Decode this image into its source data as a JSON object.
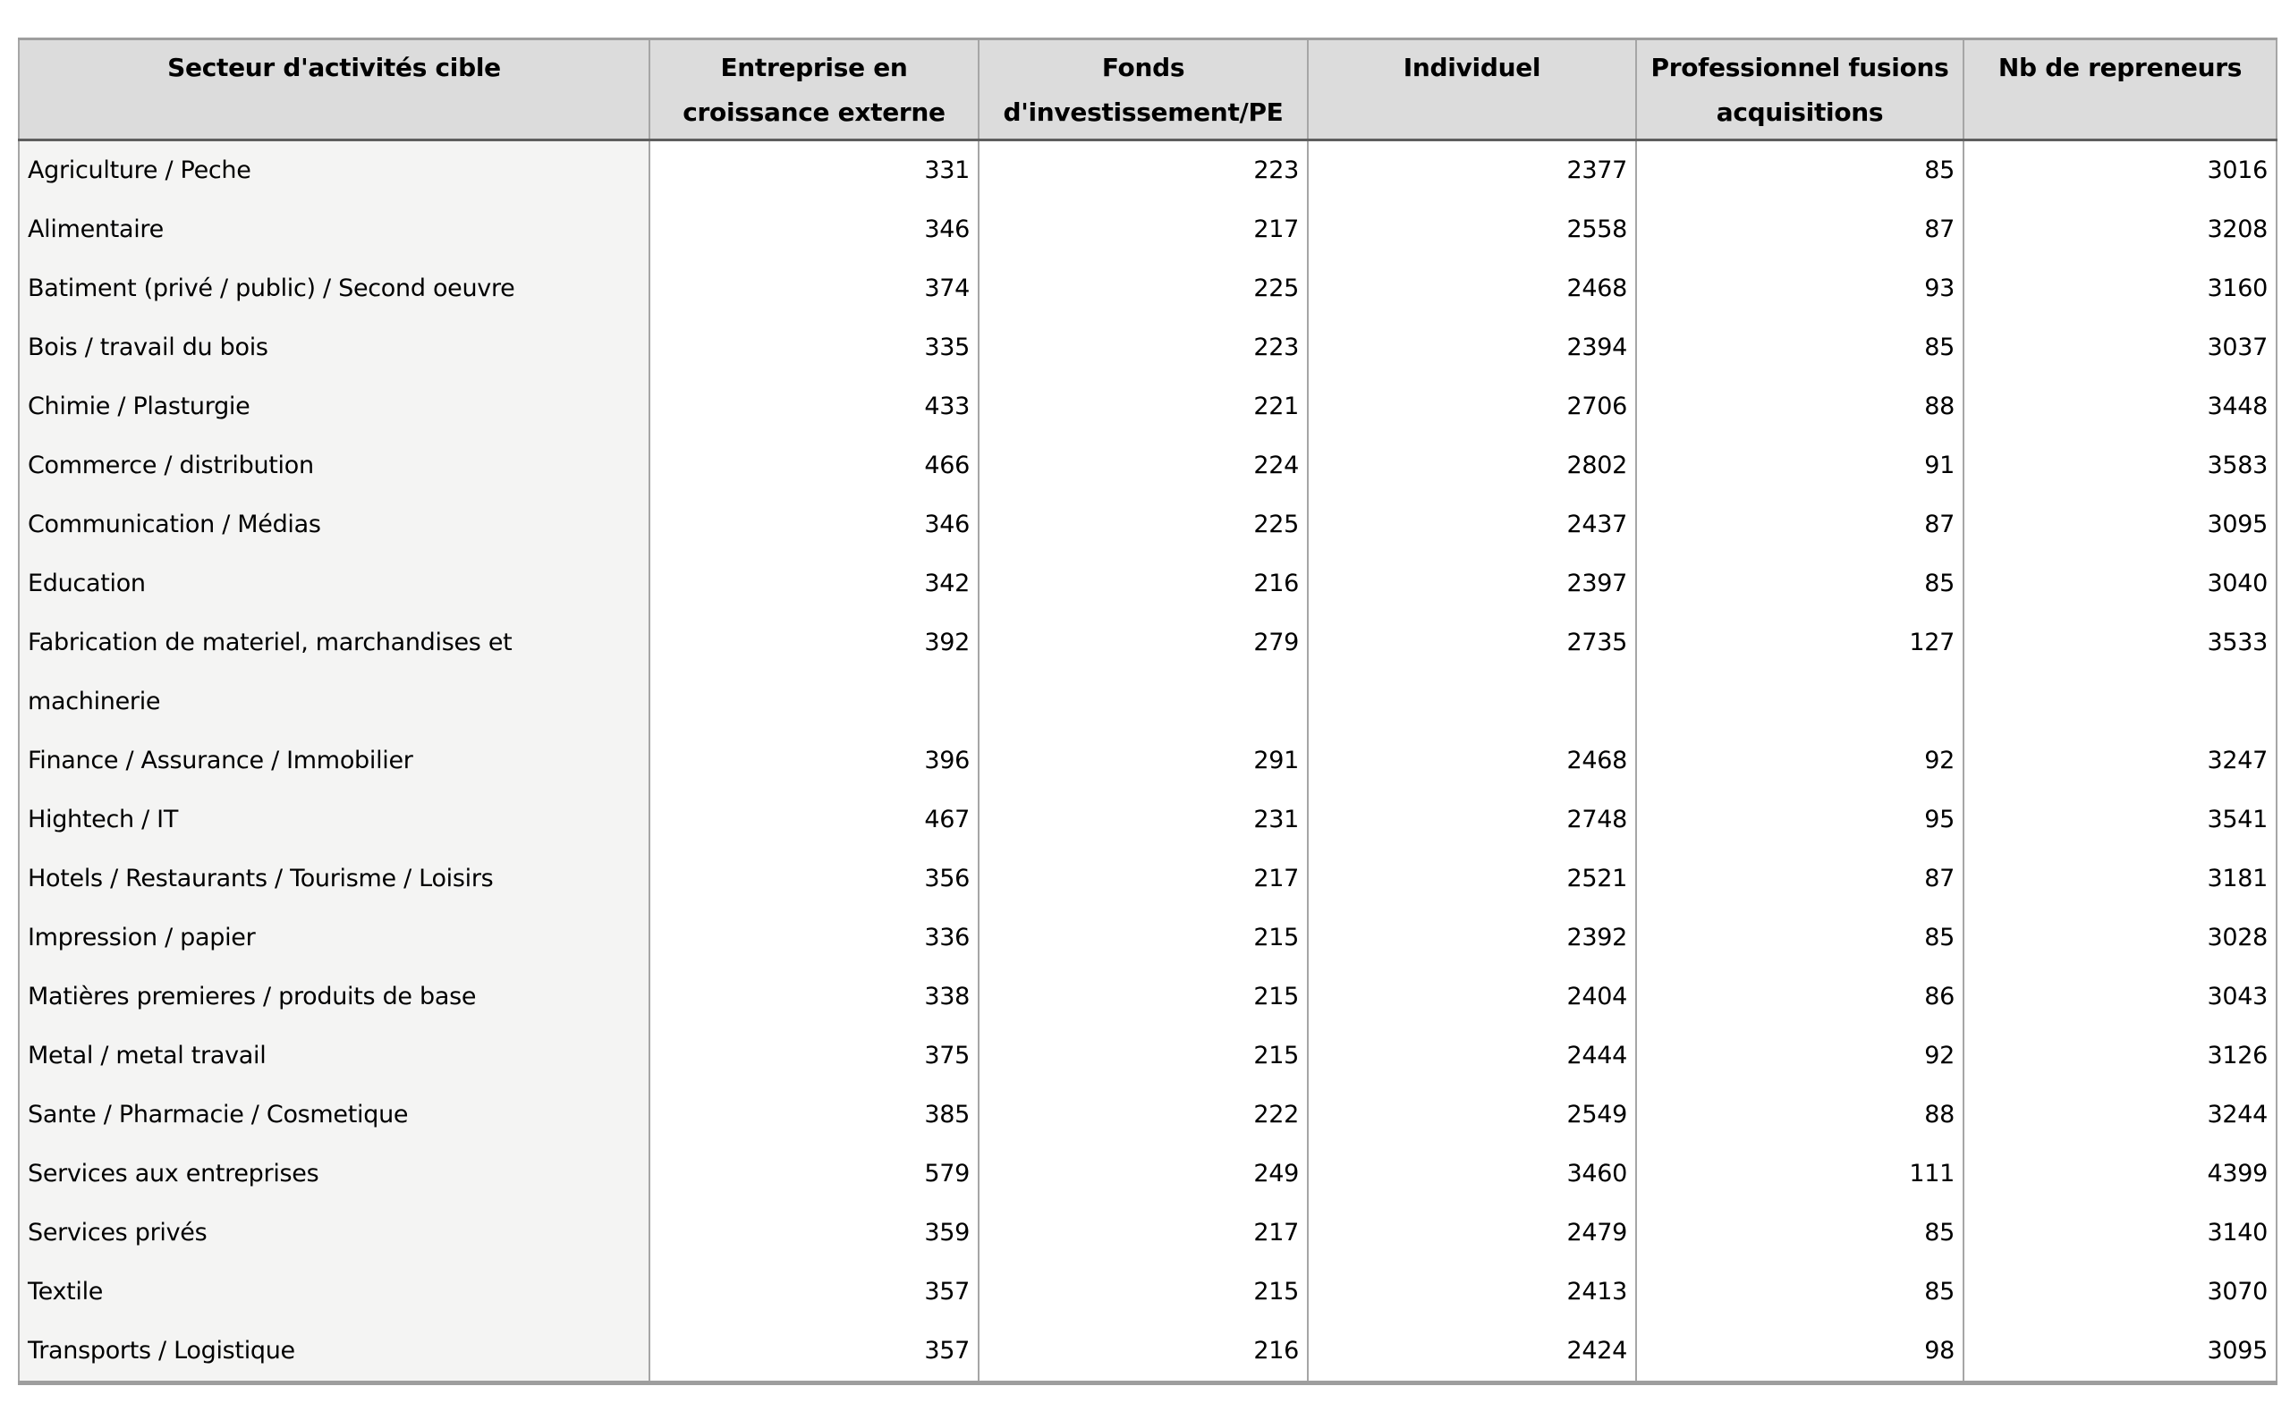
{
  "colors": {
    "header_bg": "#dcdcdc",
    "sector_column_bg": "#f4f4f3",
    "cell_bg": "#ffffff",
    "grid_line": "#a6a6a6",
    "header_underline": "#5e5e5e",
    "outer_border": "#9e9e9e",
    "text": "#000000"
  },
  "chart_data": {
    "type": "table",
    "columns": [
      "Secteur d'activités cible",
      "Entreprise en\ncroissance externe",
      "Fonds\nd'investissement/PE",
      "Individuel",
      "Professionnel fusions\nacquisitions",
      "Nb de repreneurs"
    ],
    "rows": [
      [
        "Agriculture / Peche",
        331,
        223,
        2377,
        85,
        3016
      ],
      [
        "Alimentaire",
        346,
        217,
        2558,
        87,
        3208
      ],
      [
        "Batiment (privé / public) / Second oeuvre",
        374,
        225,
        2468,
        93,
        3160
      ],
      [
        "Bois / travail du bois",
        335,
        223,
        2394,
        85,
        3037
      ],
      [
        "Chimie / Plasturgie",
        433,
        221,
        2706,
        88,
        3448
      ],
      [
        "Commerce / distribution",
        466,
        224,
        2802,
        91,
        3583
      ],
      [
        "Communication / Médias",
        346,
        225,
        2437,
        87,
        3095
      ],
      [
        "Education",
        342,
        216,
        2397,
        85,
        3040
      ],
      [
        "Fabrication de materiel, marchandises et machinerie",
        392,
        279,
        2735,
        127,
        3533
      ],
      [
        "Finance / Assurance / Immobilier",
        396,
        291,
        2468,
        92,
        3247
      ],
      [
        "Hightech / IT",
        467,
        231,
        2748,
        95,
        3541
      ],
      [
        "Hotels / Restaurants / Tourisme / Loisirs",
        356,
        217,
        2521,
        87,
        3181
      ],
      [
        "Impression / papier",
        336,
        215,
        2392,
        85,
        3028
      ],
      [
        "Matières premieres / produits de base",
        338,
        215,
        2404,
        86,
        3043
      ],
      [
        "Metal / metal travail",
        375,
        215,
        2444,
        92,
        3126
      ],
      [
        "Sante / Pharmacie / Cosmetique",
        385,
        222,
        2549,
        88,
        3244
      ],
      [
        "Services aux entreprises",
        579,
        249,
        3460,
        111,
        4399
      ],
      [
        "Services privés",
        359,
        217,
        2479,
        85,
        3140
      ],
      [
        "Textile",
        357,
        215,
        2413,
        85,
        3070
      ],
      [
        "Transports / Logistique",
        357,
        216,
        2424,
        98,
        3095
      ]
    ]
  }
}
